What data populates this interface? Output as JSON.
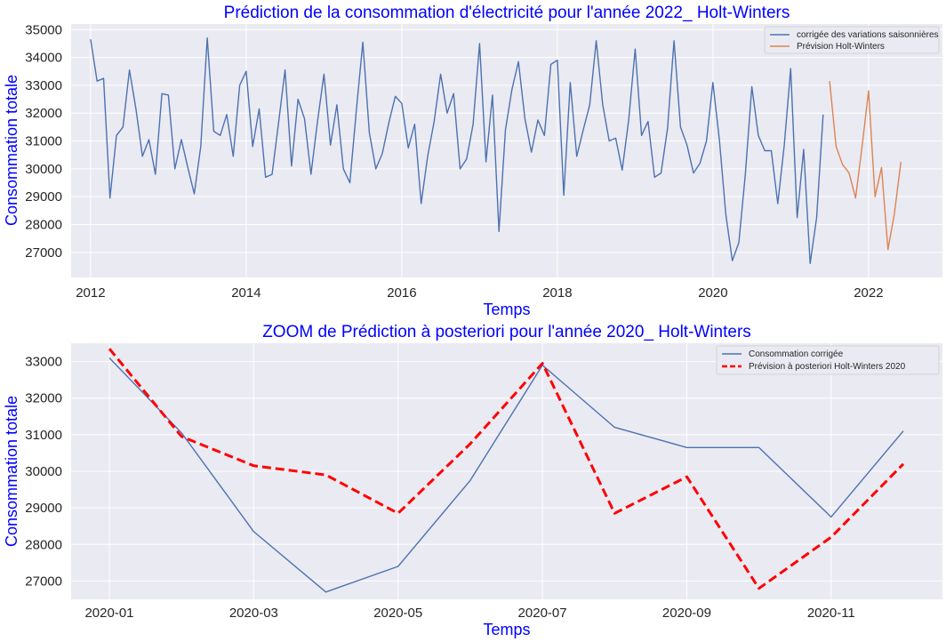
{
  "chart_data": [
    {
      "type": "line",
      "title": "Prédiction de la consommation d'électricité pour l'année 2022_ Holt-Winters",
      "xlabel": "Temps",
      "ylabel": "Consommation totale",
      "xlim": [
        2011.75,
        2022.95
      ],
      "ylim": [
        26100,
        35200
      ],
      "x_ticks": [
        "2012",
        "2014",
        "2016",
        "2018",
        "2020",
        "2022"
      ],
      "x_tick_values": [
        2012,
        2014,
        2016,
        2018,
        2020,
        2022
      ],
      "y_ticks": [
        "27000",
        "28000",
        "29000",
        "30000",
        "31000",
        "32000",
        "33000",
        "34000",
        "35000"
      ],
      "y_tick_values": [
        27000,
        28000,
        29000,
        30000,
        31000,
        32000,
        33000,
        34000,
        35000
      ],
      "grid": true,
      "legend_position": "top-right",
      "series": [
        {
          "name": "corrigée des variations saisonnières",
          "color": "#4c72b0",
          "x_start": 2012.0,
          "step": 0.08333,
          "values": [
            34650,
            33150,
            33250,
            28950,
            31200,
            31500,
            33550,
            32150,
            30450,
            31050,
            29800,
            32700,
            32650,
            30000,
            31050,
            30050,
            29100,
            30800,
            34700,
            31350,
            31200,
            31950,
            30450,
            33000,
            33500,
            30800,
            32150,
            29700,
            29800,
            31650,
            33550,
            30100,
            32500,
            31800,
            29800,
            31700,
            33400,
            30850,
            32300,
            30000,
            29500,
            32100,
            34550,
            31300,
            30000,
            30550,
            31650,
            32600,
            32350,
            30750,
            31600,
            28750,
            30450,
            31700,
            33400,
            32000,
            32700,
            30000,
            30350,
            31600,
            34500,
            30250,
            32650,
            27750,
            31400,
            32850,
            33850,
            31800,
            30600,
            31750,
            31200,
            33750,
            33900,
            29050,
            33100,
            30450,
            31400,
            32300,
            34600,
            32300,
            31000,
            31100,
            29950,
            31750,
            34300,
            31200,
            31700,
            29700,
            29850,
            31450,
            34600,
            31500,
            30850,
            29850,
            30200,
            31000,
            33100,
            31050,
            28350,
            26700,
            27350,
            29800,
            32950,
            31200,
            30650,
            30650,
            28750,
            30850,
            33600,
            28250,
            30700,
            26600,
            28250,
            31950
          ]
        },
        {
          "name": "Prévision Holt-Winters",
          "color": "#dd8452",
          "x_start": 2021.5,
          "step": 0.08333,
          "values": [
            33150,
            30800,
            30150,
            29850,
            28950,
            30800,
            32800,
            29000,
            30050,
            27100,
            28400,
            30250
          ]
        }
      ]
    },
    {
      "type": "line",
      "title": "ZOOM de Prédiction à posteriori pour l'année 2020_ Holt-Winters",
      "xlabel": "Temps",
      "ylabel": "Consommation totale",
      "categories": [
        "2020-01",
        "2020-02",
        "2020-03",
        "2020-04",
        "2020-05",
        "2020-06",
        "2020-07",
        "2020-08",
        "2020-09",
        "2020-10",
        "2020-11",
        "2020-12"
      ],
      "x_ticks": [
        "2020-01",
        "2020-03",
        "2020-05",
        "2020-07",
        "2020-09",
        "2020-11"
      ],
      "x_tick_index": [
        0,
        2,
        4,
        6,
        8,
        10
      ],
      "ylim": [
        26500,
        33500
      ],
      "y_ticks": [
        "27000",
        "28000",
        "29000",
        "30000",
        "31000",
        "32000",
        "33000"
      ],
      "y_tick_values": [
        27000,
        28000,
        29000,
        30000,
        31000,
        32000,
        33000
      ],
      "grid": true,
      "legend_position": "top-right",
      "series": [
        {
          "name": "Consommation corrigée",
          "color": "#4c72b0",
          "dashed": false,
          "values": [
            33100,
            31050,
            28350,
            26700,
            27400,
            29750,
            32900,
            31200,
            30650,
            30650,
            28750,
            31100
          ]
        },
        {
          "name": "Prévision à posteriori Holt-Winters 2020",
          "color": "#ff0000",
          "dashed": true,
          "values": [
            33350,
            30950,
            30150,
            29900,
            28850,
            30750,
            32950,
            28850,
            29850,
            26800,
            28200,
            30200
          ]
        }
      ]
    }
  ]
}
